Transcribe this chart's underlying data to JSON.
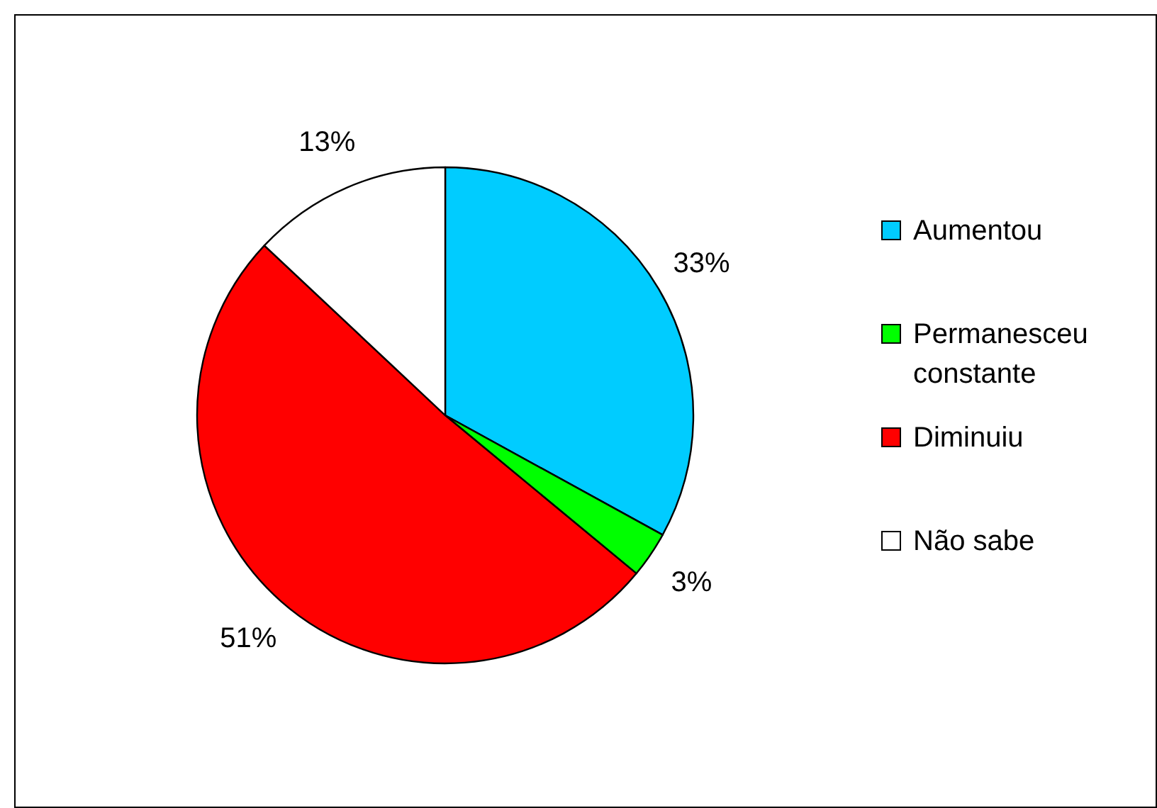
{
  "chart_data": {
    "type": "pie",
    "categories": [
      "Aumentou",
      "Permanesceu constante",
      "Diminuiu",
      "Não sabe"
    ],
    "values": [
      33,
      3,
      51,
      13
    ],
    "colors": [
      "#00ccff",
      "#00ff00",
      "#ff0000",
      "#ffffff"
    ],
    "value_labels": [
      "33%",
      "3%",
      "51%",
      "13%"
    ],
    "legend": "right"
  }
}
